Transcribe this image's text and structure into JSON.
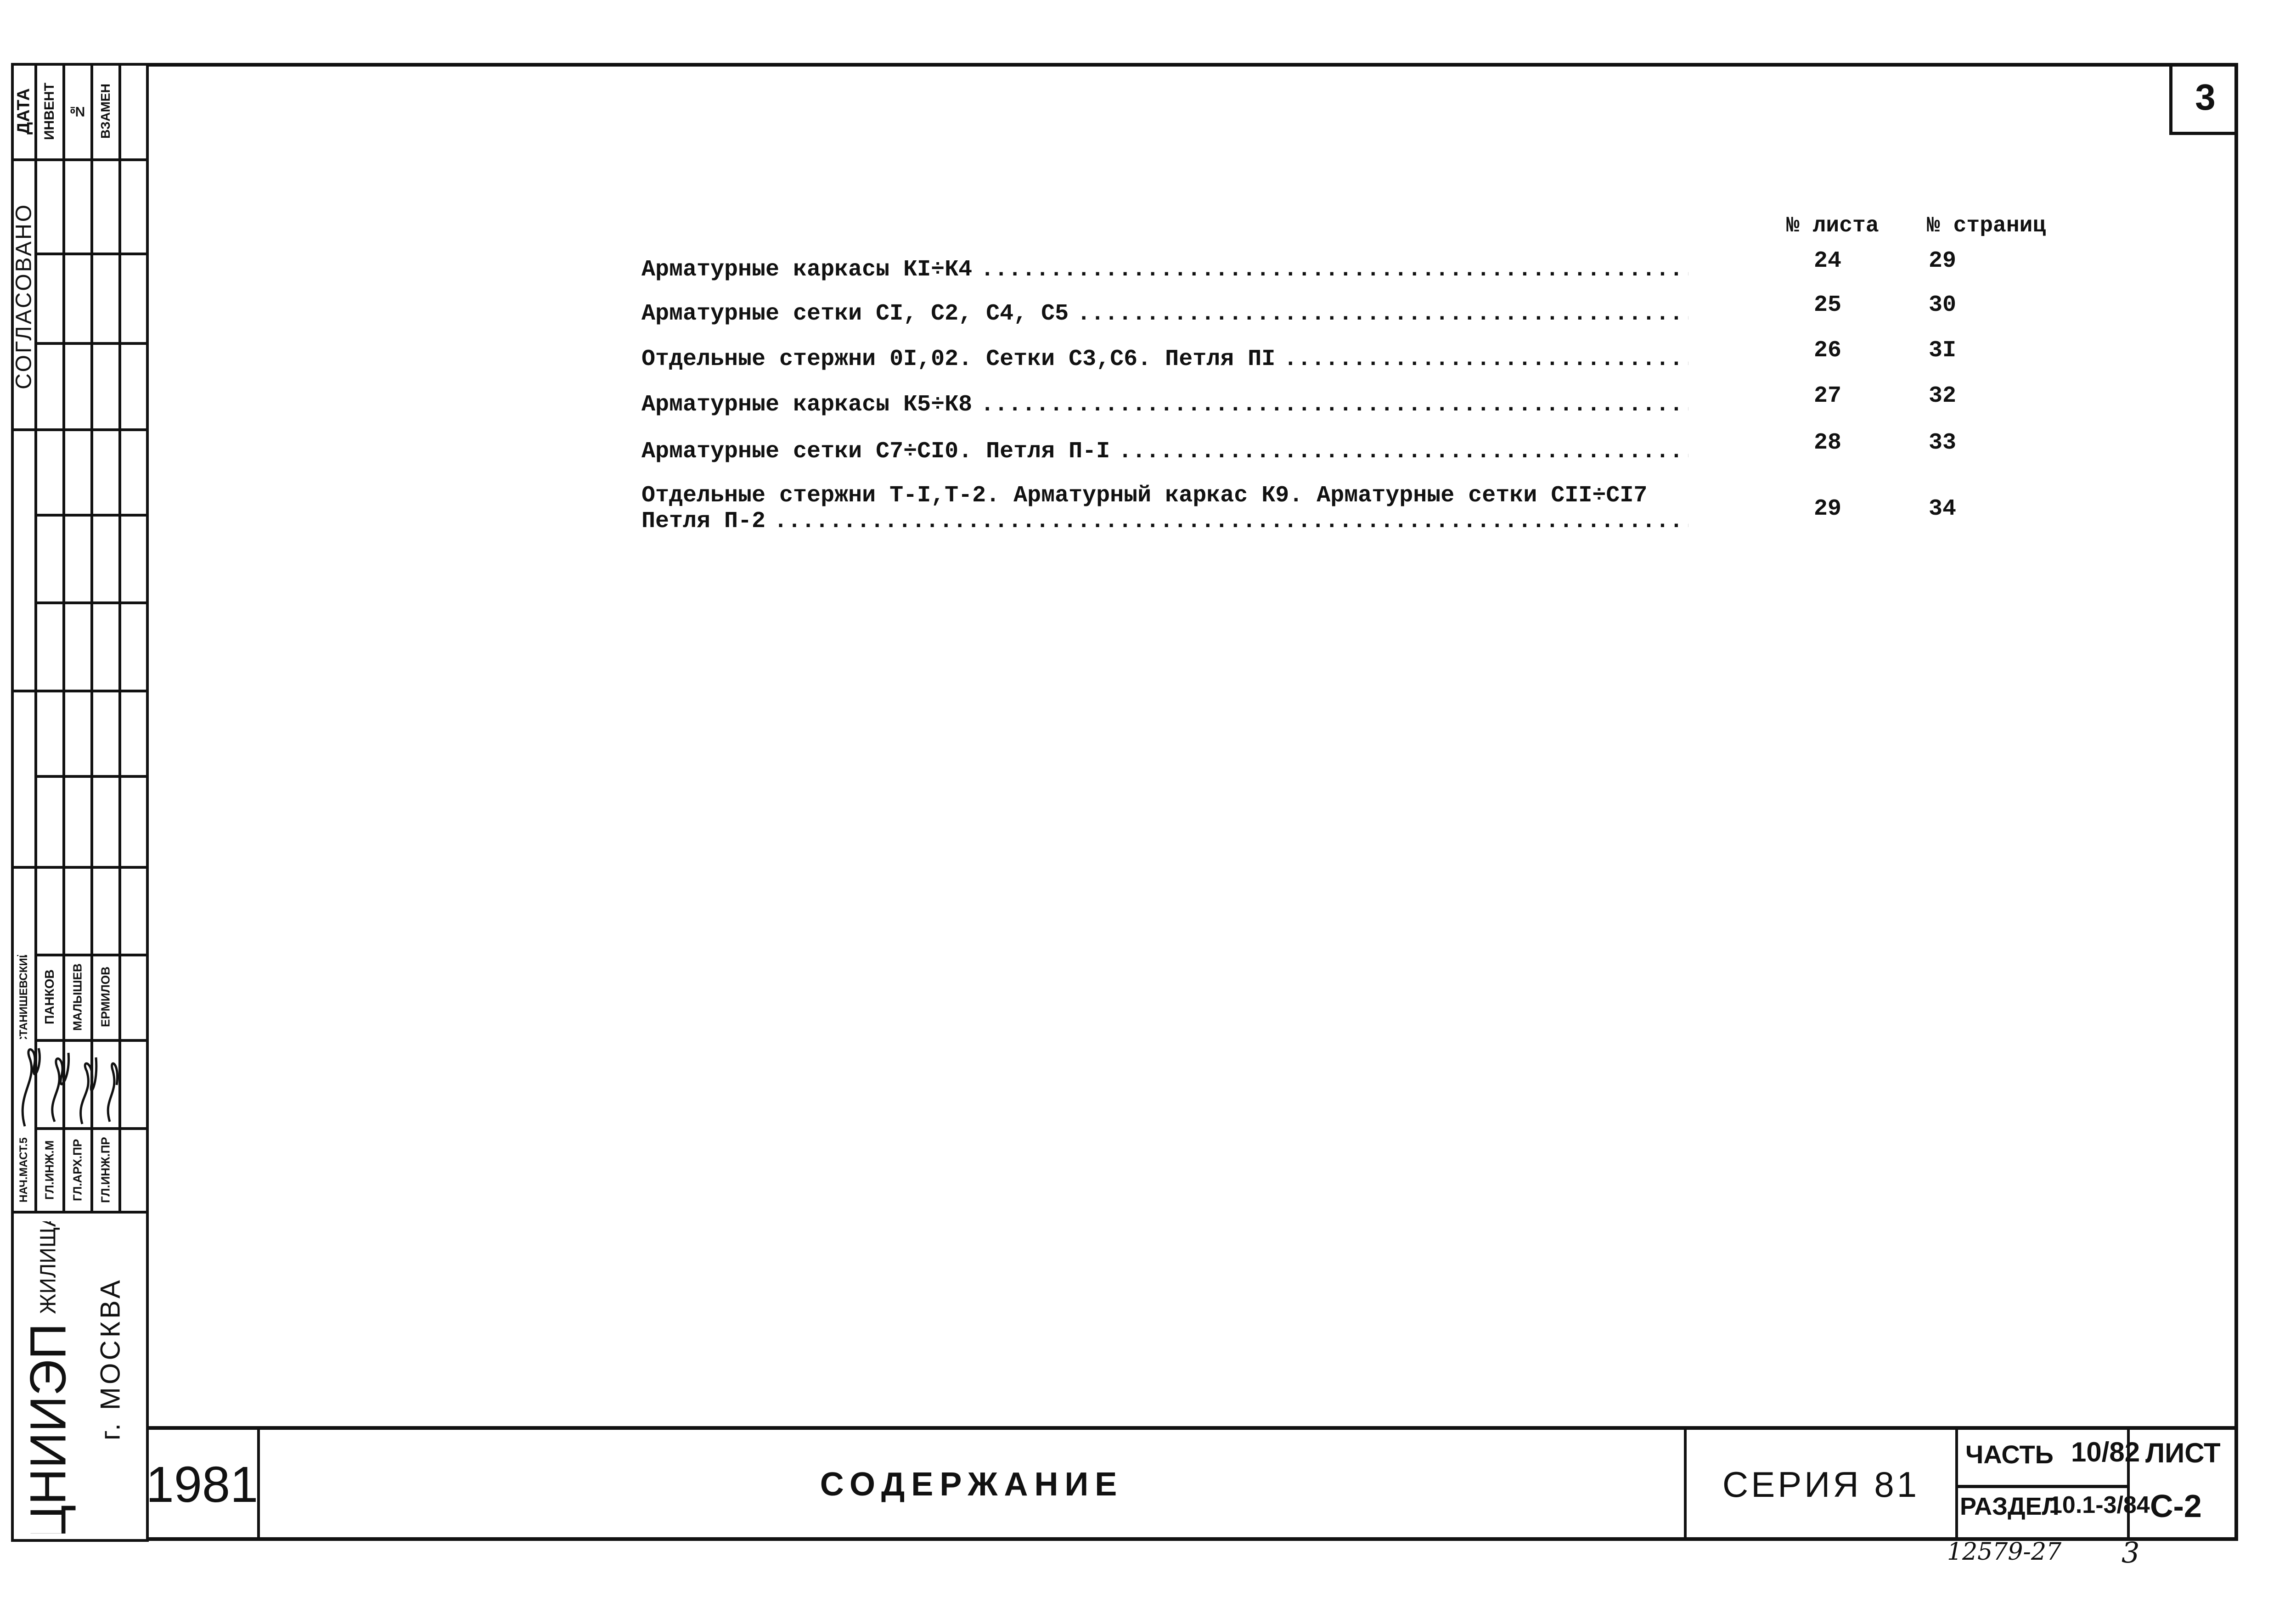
{
  "sheet_number": "3",
  "toc": {
    "col_sheet_header": "№ листа",
    "col_pages_header": "№ страниц",
    "rows": [
      {
        "lines": [
          "Арматурные каркасы КI÷К4"
        ],
        "sheet": "24",
        "pages": "29"
      },
      {
        "lines": [
          "Арматурные сетки СI, С2, С4, С5"
        ],
        "sheet": "25",
        "pages": "30"
      },
      {
        "lines": [
          "Отдельные стержни 0I,02. Сетки С3,С6. Петля ПI"
        ],
        "sheet": "26",
        "pages": "3I"
      },
      {
        "lines": [
          "Арматурные каркасы К5÷К8"
        ],
        "sheet": "27",
        "pages": "32"
      },
      {
        "lines": [
          "Арматурные сетки С7÷СI0. Петля П-I"
        ],
        "sheet": "28",
        "pages": "33"
      },
      {
        "lines": [
          "Отдельные стержни Т-I,Т-2. Арматурный каркас К9. Арматурные сетки СII÷СI7",
          "Петля П-2"
        ],
        "sheet": "29",
        "pages": "34"
      }
    ],
    "leader": "......................................................................................................"
  },
  "left_strip": {
    "date": "ДАТА",
    "invent": "ИНВЕНТ",
    "number": "№",
    "replace": "ВЗАМЕН",
    "agreed": "СОГЛАСОВАНО",
    "roles": [
      "НАЧ.МАСТ.5",
      "ГЛ.ИНЖ.М",
      "ГЛ.АРХ.ПР",
      "ГЛ.ИНЖ.ПР"
    ],
    "names": [
      "СТАНИШЕВСКИЙ",
      "ПАНКОВ",
      "МАЛЫШЕВ",
      "ЕРМИЛОВ"
    ],
    "org": "ЦНИИЭП",
    "org_sub": "ЖИЛИЩА",
    "city": "г. МОСКВА"
  },
  "title_block": {
    "year": "1981",
    "title": "СОДЕРЖАНИЕ",
    "series": "СЕРИЯ 81",
    "part_label": "ЧАСТЬ",
    "part_value": "10/82",
    "section_label": "РАЗДЕЛ",
    "section_value": "10.1-3/84",
    "sheet_label": "ЛИСТ",
    "sheet_value": "С-2"
  },
  "footer": {
    "archive_number": "12579-27",
    "page": "3"
  }
}
